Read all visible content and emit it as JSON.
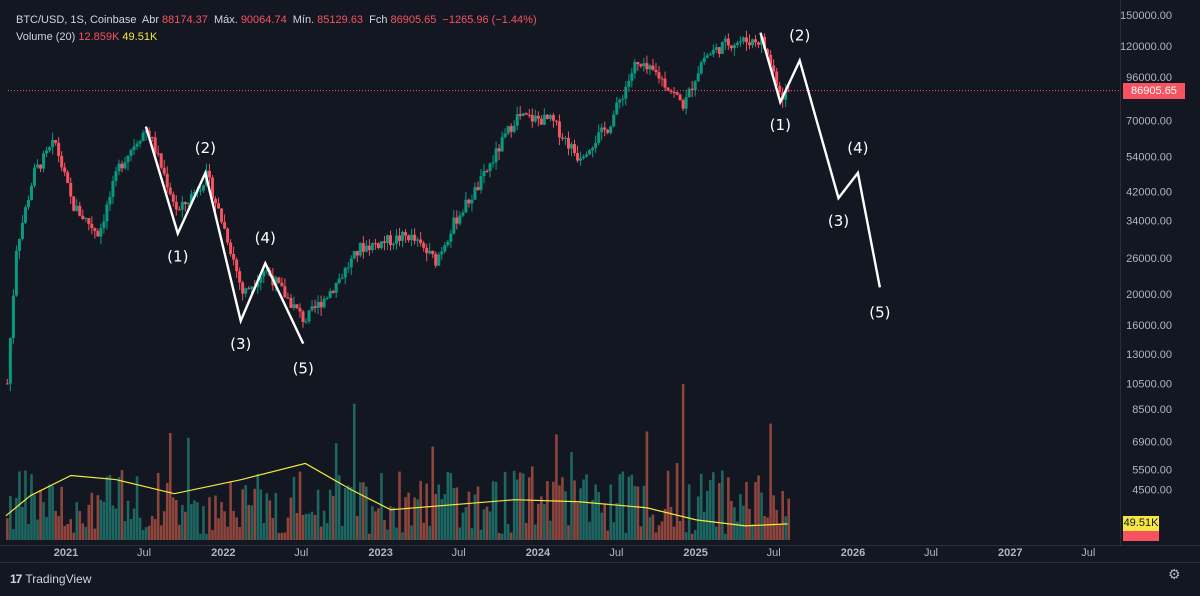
{
  "header": {
    "symbol": "BTC/USD, 1S, Coinbase",
    "open_label": "Abr",
    "open": "88174.37",
    "high_label": "Máx.",
    "high": "90064.74",
    "low_label": "Mín.",
    "low": "85129.63",
    "close_label": "Fch",
    "close": "86905.65",
    "change": "−1265.96 (−1.44%)"
  },
  "volume_header": {
    "label": "Volume (20)",
    "value1": "12.859K",
    "value2": "49.51K"
  },
  "last_price_tag": "86905.65",
  "volume_tag": "49.51K",
  "footer": {
    "brand": "TradingView"
  },
  "colors": {
    "background": "#131722",
    "up": "#089981",
    "down": "#f7525f",
    "volume_ma": "#f5e642",
    "wave": "#ffffff",
    "grid": "#1e222d"
  },
  "chart_data": {
    "type": "candlestick",
    "y_scale": "log",
    "price_axis_ticks": [
      "150000.00",
      "120000.00",
      "96000.00",
      "86905.65",
      "70000.00",
      "54000.00",
      "42000.00",
      "34000.00",
      "26000.00",
      "20000.00",
      "16000.00",
      "13000.00",
      "10500.00",
      "8500.00",
      "6900.00",
      "5500.00",
      "4500.00"
    ],
    "time_axis_ticks": [
      "2021",
      "Jul",
      "2022",
      "Jul",
      "2023",
      "Jul",
      "2024",
      "Jul",
      "2025",
      "Jul",
      "2026",
      "Jul",
      "2027",
      "Jul"
    ],
    "price_path": [
      [
        "2020-12-20",
        10500
      ],
      [
        "2021-01-10",
        28000
      ],
      [
        "2021-02-20",
        48000
      ],
      [
        "2021-04-10",
        60000
      ],
      [
        "2021-05-20",
        38000
      ],
      [
        "2021-07-20",
        31000
      ],
      [
        "2021-09-05",
        50000
      ],
      [
        "2021-10-20",
        62000
      ],
      [
        "2021-11-10",
        66000
      ],
      [
        "2022-01-20",
        36000
      ],
      [
        "2022-03-28",
        47000
      ],
      [
        "2022-05-15",
        30000
      ],
      [
        "2022-06-20",
        20000
      ],
      [
        "2022-08-10",
        24000
      ],
      [
        "2022-11-10",
        16500
      ],
      [
        "2023-01-15",
        21000
      ],
      [
        "2023-03-20",
        28000
      ],
      [
        "2023-07-10",
        30500
      ],
      [
        "2023-09-10",
        25500
      ],
      [
        "2023-10-25",
        34000
      ],
      [
        "2023-12-20",
        44000
      ],
      [
        "2024-03-14",
        72000
      ],
      [
        "2024-06-05",
        70000
      ],
      [
        "2024-08-05",
        54000
      ],
      [
        "2024-10-15",
        67000
      ],
      [
        "2024-12-15",
        104000
      ],
      [
        "2025-02-05",
        98000
      ],
      [
        "2025-04-08",
        78000
      ],
      [
        "2025-05-22",
        110000
      ],
      [
        "2025-07-14",
        122000
      ],
      [
        "2025-08-14",
        124000
      ],
      [
        "2025-10-06",
        125000
      ],
      [
        "2025-11-21",
        84000
      ],
      [
        "2025-12-08",
        86905.65
      ]
    ],
    "volume_ma_points": [
      [
        "2020-12-20",
        3200
      ],
      [
        "2021-02-15",
        4200
      ],
      [
        "2021-05-20",
        5200
      ],
      [
        "2021-09-01",
        5000
      ],
      [
        "2022-01-15",
        4300
      ],
      [
        "2022-06-20",
        5000
      ],
      [
        "2022-11-15",
        5800
      ],
      [
        "2023-03-01",
        4500
      ],
      [
        "2023-06-01",
        3500
      ],
      [
        "2024-03-15",
        4000
      ],
      [
        "2024-08-10",
        3900
      ],
      [
        "2025-01-15",
        3600
      ],
      [
        "2025-05-10",
        3000
      ],
      [
        "2025-09-01",
        2700
      ],
      [
        "2025-12-08",
        2800
      ]
    ],
    "wave_annotations": [
      {
        "group": "2022",
        "labels": [
          "(1)",
          "(2)",
          "(3)",
          "(4)",
          "(5)"
        ],
        "points": [
          [
            "2021-11-10",
            67000
          ],
          [
            "2022-01-23",
            31000
          ],
          [
            "2022-03-28",
            48000
          ],
          [
            "2022-06-18",
            16500
          ],
          [
            "2022-08-14",
            25000
          ],
          [
            "2022-11-10",
            14000
          ]
        ]
      },
      {
        "group": "2026",
        "labels": [
          "(1)",
          "(2)",
          "(3)",
          "(4)",
          "(5)"
        ],
        "points": [
          [
            "2025-10-06",
            132000
          ],
          [
            "2025-11-21",
            80000
          ],
          [
            "2026-01-05",
            108000
          ],
          [
            "2026-04-05",
            40000
          ],
          [
            "2026-05-20",
            48000
          ],
          [
            "2026-07-10",
            21000
          ]
        ]
      }
    ]
  }
}
